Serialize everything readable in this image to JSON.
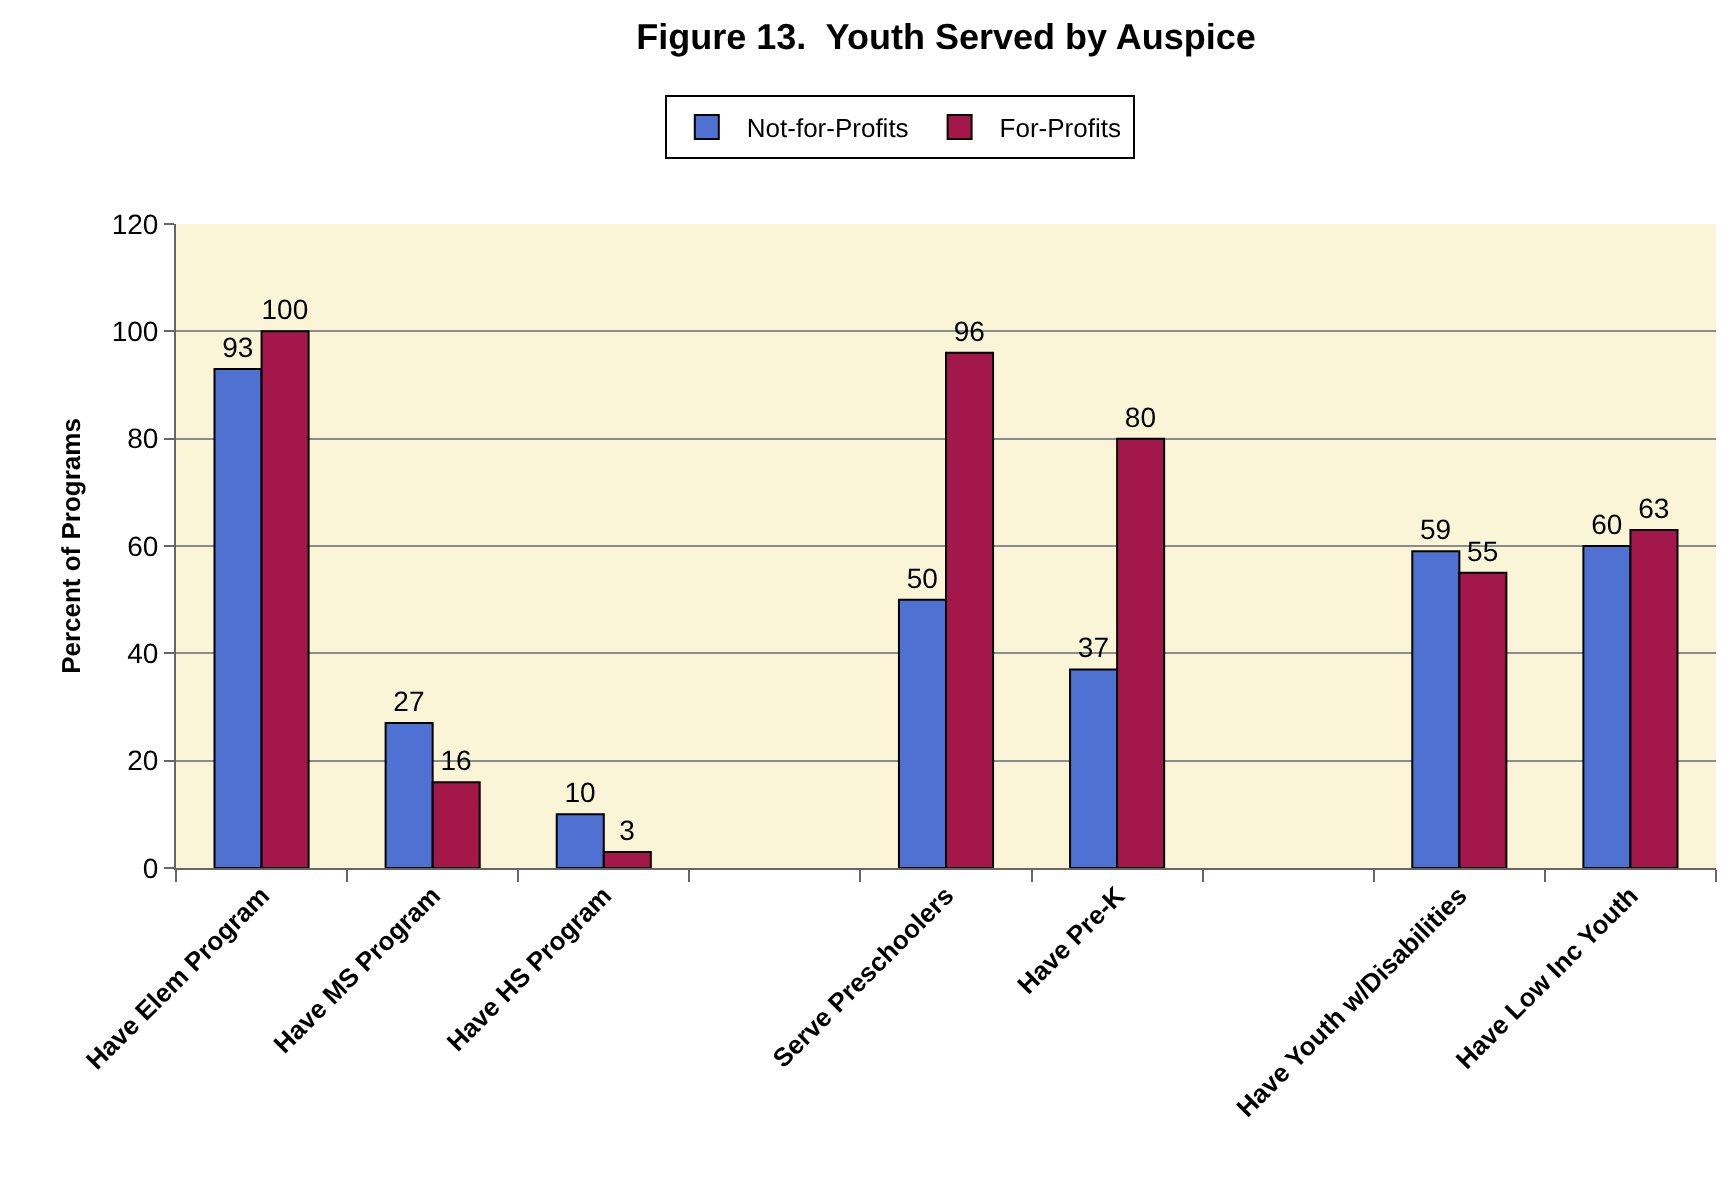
{
  "chart_data": {
    "type": "bar",
    "title": "Figure 13.  Youth Served by Auspice",
    "ylabel": "Percent of Programs",
    "categories": [
      "Have Elem Program",
      "Have MS Program",
      "Have HS Program",
      null,
      "Serve Preschoolers",
      "Have Pre-K",
      null,
      "Have Youth w/Disabilities",
      "Have Low Inc Youth"
    ],
    "series": [
      {
        "name": "Not-for-Profits",
        "color": "#4f72d2",
        "values": [
          93,
          27,
          10,
          null,
          50,
          37,
          null,
          59,
          60
        ]
      },
      {
        "name": "For-Profits",
        "color": "#a3174b",
        "values": [
          100,
          16,
          3,
          null,
          96,
          80,
          null,
          55,
          63
        ]
      }
    ],
    "ylim": [
      0,
      120
    ],
    "yticks": [
      0,
      20,
      40,
      60,
      80,
      100,
      120
    ],
    "grid": "y",
    "legend": "top",
    "data_labels": true
  }
}
